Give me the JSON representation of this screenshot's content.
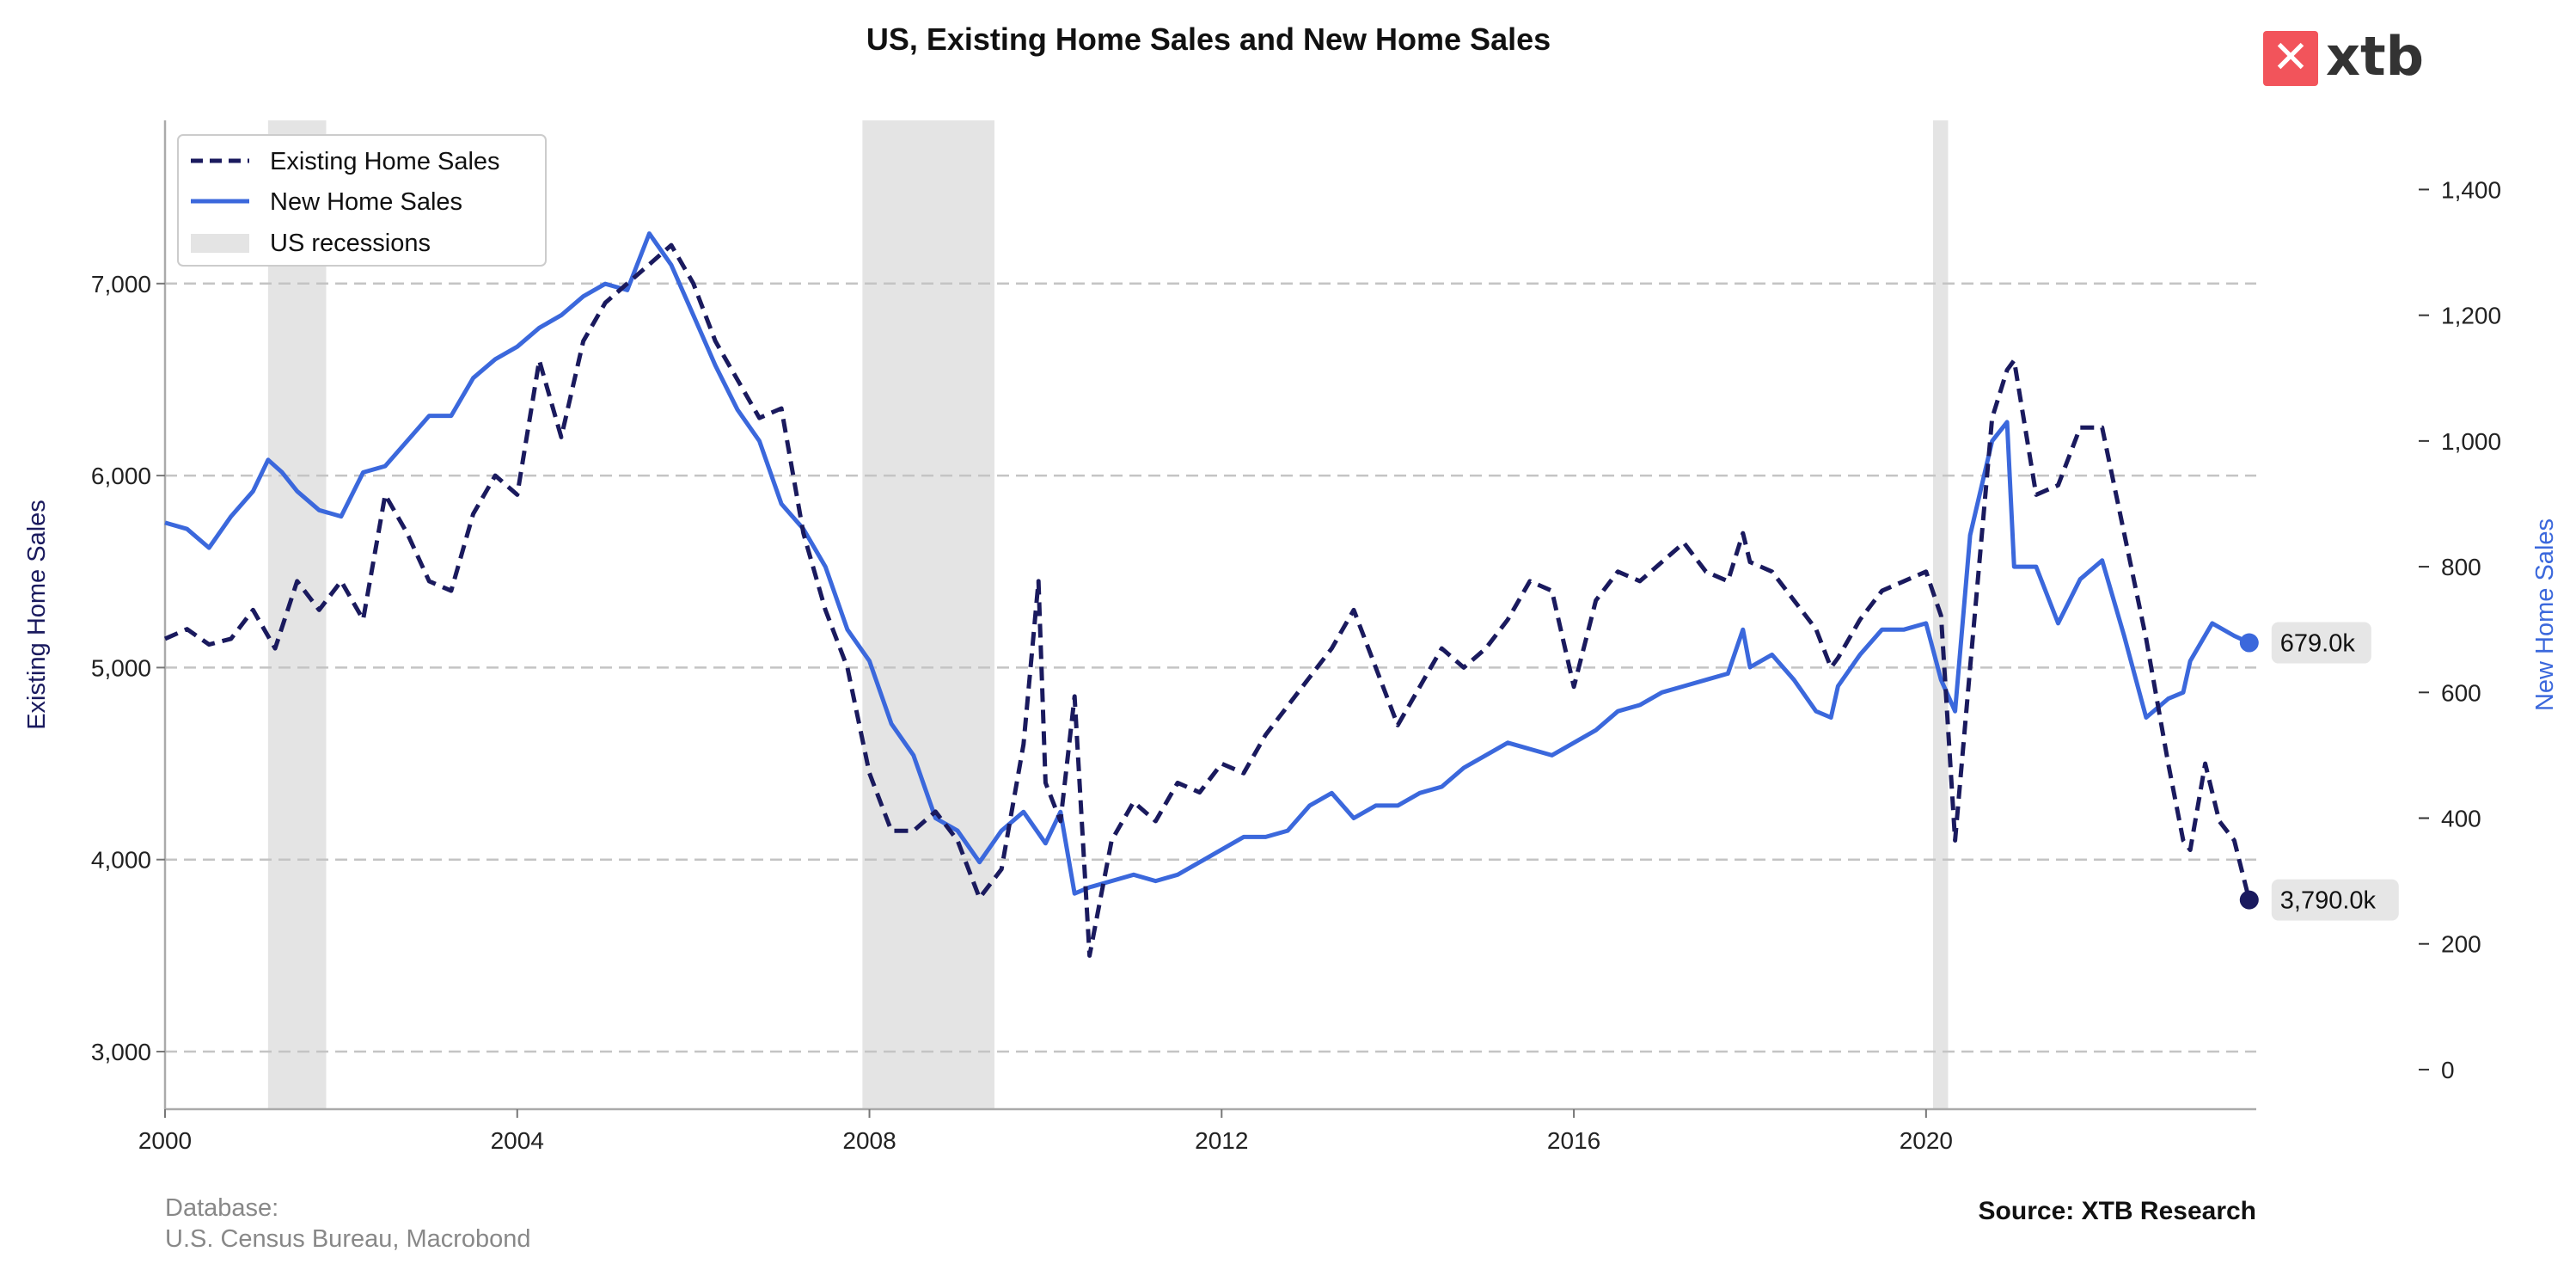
{
  "header": {
    "title": "US, Existing Home Sales and New Home Sales"
  },
  "logo": {
    "text": "xtb",
    "color": "#f2545b"
  },
  "footer": {
    "database_line1": "Database:",
    "database_line2": "U.S. Census Bureau, Macrobond",
    "source": "Source: XTB Research"
  },
  "chart_data": {
    "type": "line",
    "title": "US, Existing Home Sales and New Home Sales",
    "x_range": [
      2000,
      2023.75
    ],
    "x_ticks": [
      "2000",
      "2004",
      "2008",
      "2012",
      "2016",
      "2020"
    ],
    "left_axis": {
      "label": "Existing Home Sales",
      "range": [
        2700,
        7850
      ],
      "ticks": [
        "3,000",
        "4,000",
        "5,000",
        "6,000",
        "7,000"
      ]
    },
    "right_axis": {
      "label": "New Home Sales",
      "range": [
        -63,
        1510
      ],
      "ticks": [
        "0",
        "200",
        "400",
        "600",
        "800",
        "1,000",
        "1,200",
        "1,400"
      ]
    },
    "grid": "horizontal dashed",
    "legend": {
      "position": "top-left"
    },
    "recessions_label": "US recessions",
    "recessions": [
      [
        2001.17,
        2001.83
      ],
      [
        2007.92,
        2009.42
      ],
      [
        2020.08,
        2020.25
      ]
    ],
    "series": [
      {
        "name": "Existing Home Sales",
        "axis": "left",
        "color": "#1a1a5e",
        "style": "dashed",
        "end_label": "3,790.0k",
        "points": [
          [
            2000.0,
            5150
          ],
          [
            2000.25,
            5200
          ],
          [
            2000.5,
            5120
          ],
          [
            2000.75,
            5150
          ],
          [
            2001.0,
            5300
          ],
          [
            2001.25,
            5100
          ],
          [
            2001.5,
            5450
          ],
          [
            2001.75,
            5300
          ],
          [
            2002.0,
            5450
          ],
          [
            2002.25,
            5250
          ],
          [
            2002.5,
            5900
          ],
          [
            2002.75,
            5700
          ],
          [
            2003.0,
            5450
          ],
          [
            2003.25,
            5400
          ],
          [
            2003.5,
            5800
          ],
          [
            2003.75,
            6000
          ],
          [
            2004.0,
            5900
          ],
          [
            2004.25,
            6600
          ],
          [
            2004.5,
            6200
          ],
          [
            2004.75,
            6700
          ],
          [
            2005.0,
            6900
          ],
          [
            2005.25,
            7000
          ],
          [
            2005.5,
            7100
          ],
          [
            2005.75,
            7200
          ],
          [
            2006.0,
            7000
          ],
          [
            2006.25,
            6700
          ],
          [
            2006.5,
            6500
          ],
          [
            2006.75,
            6300
          ],
          [
            2007.0,
            6350
          ],
          [
            2007.25,
            5700
          ],
          [
            2007.5,
            5300
          ],
          [
            2007.75,
            5000
          ],
          [
            2008.0,
            4450
          ],
          [
            2008.25,
            4150
          ],
          [
            2008.5,
            4150
          ],
          [
            2008.75,
            4250
          ],
          [
            2009.0,
            4100
          ],
          [
            2009.25,
            3800
          ],
          [
            2009.5,
            3950
          ],
          [
            2009.75,
            4600
          ],
          [
            2009.92,
            5450
          ],
          [
            2010.0,
            4400
          ],
          [
            2010.17,
            4200
          ],
          [
            2010.33,
            4850
          ],
          [
            2010.5,
            3500
          ],
          [
            2010.75,
            4100
          ],
          [
            2011.0,
            4300
          ],
          [
            2011.25,
            4200
          ],
          [
            2011.5,
            4400
          ],
          [
            2011.75,
            4350
          ],
          [
            2012.0,
            4500
          ],
          [
            2012.25,
            4450
          ],
          [
            2012.5,
            4650
          ],
          [
            2012.75,
            4800
          ],
          [
            2013.0,
            4950
          ],
          [
            2013.25,
            5100
          ],
          [
            2013.5,
            5300
          ],
          [
            2013.75,
            5000
          ],
          [
            2014.0,
            4700
          ],
          [
            2014.25,
            4900
          ],
          [
            2014.5,
            5100
          ],
          [
            2014.75,
            5000
          ],
          [
            2015.0,
            5100
          ],
          [
            2015.25,
            5250
          ],
          [
            2015.5,
            5450
          ],
          [
            2015.75,
            5400
          ],
          [
            2016.0,
            4900
          ],
          [
            2016.25,
            5350
          ],
          [
            2016.5,
            5500
          ],
          [
            2016.75,
            5450
          ],
          [
            2017.0,
            5550
          ],
          [
            2017.25,
            5650
          ],
          [
            2017.5,
            5500
          ],
          [
            2017.75,
            5450
          ],
          [
            2017.92,
            5700
          ],
          [
            2018.0,
            5550
          ],
          [
            2018.25,
            5500
          ],
          [
            2018.5,
            5350
          ],
          [
            2018.75,
            5200
          ],
          [
            2018.92,
            5000
          ],
          [
            2019.0,
            5050
          ],
          [
            2019.25,
            5250
          ],
          [
            2019.5,
            5400
          ],
          [
            2019.75,
            5450
          ],
          [
            2020.0,
            5500
          ],
          [
            2020.17,
            5270
          ],
          [
            2020.33,
            4100
          ],
          [
            2020.5,
            5000
          ],
          [
            2020.75,
            6300
          ],
          [
            2020.92,
            6550
          ],
          [
            2021.0,
            6600
          ],
          [
            2021.25,
            5900
          ],
          [
            2021.5,
            5950
          ],
          [
            2021.75,
            6250
          ],
          [
            2022.0,
            6250
          ],
          [
            2022.25,
            5700
          ],
          [
            2022.5,
            5150
          ],
          [
            2022.75,
            4500
          ],
          [
            2022.92,
            4100
          ],
          [
            2023.0,
            4050
          ],
          [
            2023.17,
            4500
          ],
          [
            2023.33,
            4200
          ],
          [
            2023.5,
            4100
          ],
          [
            2023.67,
            3790
          ]
        ]
      },
      {
        "name": "New Home Sales",
        "axis": "right",
        "color": "#3b68dc",
        "style": "solid",
        "end_label": "679.0k",
        "points": [
          [
            2000.0,
            870
          ],
          [
            2000.25,
            860
          ],
          [
            2000.5,
            830
          ],
          [
            2000.75,
            880
          ],
          [
            2001.0,
            920
          ],
          [
            2001.17,
            970
          ],
          [
            2001.33,
            950
          ],
          [
            2001.5,
            920
          ],
          [
            2001.75,
            890
          ],
          [
            2002.0,
            880
          ],
          [
            2002.25,
            950
          ],
          [
            2002.5,
            960
          ],
          [
            2002.75,
            1000
          ],
          [
            2003.0,
            1040
          ],
          [
            2003.25,
            1040
          ],
          [
            2003.5,
            1100
          ],
          [
            2003.75,
            1130
          ],
          [
            2004.0,
            1150
          ],
          [
            2004.25,
            1180
          ],
          [
            2004.5,
            1200
          ],
          [
            2004.75,
            1230
          ],
          [
            2005.0,
            1250
          ],
          [
            2005.25,
            1240
          ],
          [
            2005.5,
            1330
          ],
          [
            2005.75,
            1280
          ],
          [
            2006.0,
            1200
          ],
          [
            2006.25,
            1120
          ],
          [
            2006.5,
            1050
          ],
          [
            2006.75,
            1000
          ],
          [
            2007.0,
            900
          ],
          [
            2007.25,
            860
          ],
          [
            2007.5,
            800
          ],
          [
            2007.75,
            700
          ],
          [
            2008.0,
            650
          ],
          [
            2008.25,
            550
          ],
          [
            2008.5,
            500
          ],
          [
            2008.75,
            400
          ],
          [
            2009.0,
            380
          ],
          [
            2009.25,
            330
          ],
          [
            2009.5,
            380
          ],
          [
            2009.75,
            410
          ],
          [
            2010.0,
            360
          ],
          [
            2010.17,
            410
          ],
          [
            2010.33,
            280
          ],
          [
            2010.5,
            290
          ],
          [
            2010.75,
            300
          ],
          [
            2011.0,
            310
          ],
          [
            2011.25,
            300
          ],
          [
            2011.5,
            310
          ],
          [
            2011.75,
            330
          ],
          [
            2012.0,
            350
          ],
          [
            2012.25,
            370
          ],
          [
            2012.5,
            370
          ],
          [
            2012.75,
            380
          ],
          [
            2013.0,
            420
          ],
          [
            2013.25,
            440
          ],
          [
            2013.5,
            400
          ],
          [
            2013.75,
            420
          ],
          [
            2014.0,
            420
          ],
          [
            2014.25,
            440
          ],
          [
            2014.5,
            450
          ],
          [
            2014.75,
            480
          ],
          [
            2015.0,
            500
          ],
          [
            2015.25,
            520
          ],
          [
            2015.5,
            510
          ],
          [
            2015.75,
            500
          ],
          [
            2016.0,
            520
          ],
          [
            2016.25,
            540
          ],
          [
            2016.5,
            570
          ],
          [
            2016.75,
            580
          ],
          [
            2017.0,
            600
          ],
          [
            2017.25,
            610
          ],
          [
            2017.5,
            620
          ],
          [
            2017.75,
            630
          ],
          [
            2017.92,
            700
          ],
          [
            2018.0,
            640
          ],
          [
            2018.25,
            660
          ],
          [
            2018.5,
            620
          ],
          [
            2018.75,
            570
          ],
          [
            2018.92,
            560
          ],
          [
            2019.0,
            610
          ],
          [
            2019.25,
            660
          ],
          [
            2019.5,
            700
          ],
          [
            2019.75,
            700
          ],
          [
            2020.0,
            710
          ],
          [
            2020.17,
            620
          ],
          [
            2020.33,
            570
          ],
          [
            2020.5,
            850
          ],
          [
            2020.75,
            1000
          ],
          [
            2020.92,
            1030
          ],
          [
            2021.0,
            800
          ],
          [
            2021.25,
            800
          ],
          [
            2021.5,
            710
          ],
          [
            2021.75,
            780
          ],
          [
            2022.0,
            810
          ],
          [
            2022.25,
            690
          ],
          [
            2022.5,
            560
          ],
          [
            2022.75,
            590
          ],
          [
            2022.92,
            600
          ],
          [
            2023.0,
            650
          ],
          [
            2023.25,
            710
          ],
          [
            2023.5,
            690
          ],
          [
            2023.67,
            679
          ]
        ]
      }
    ]
  }
}
